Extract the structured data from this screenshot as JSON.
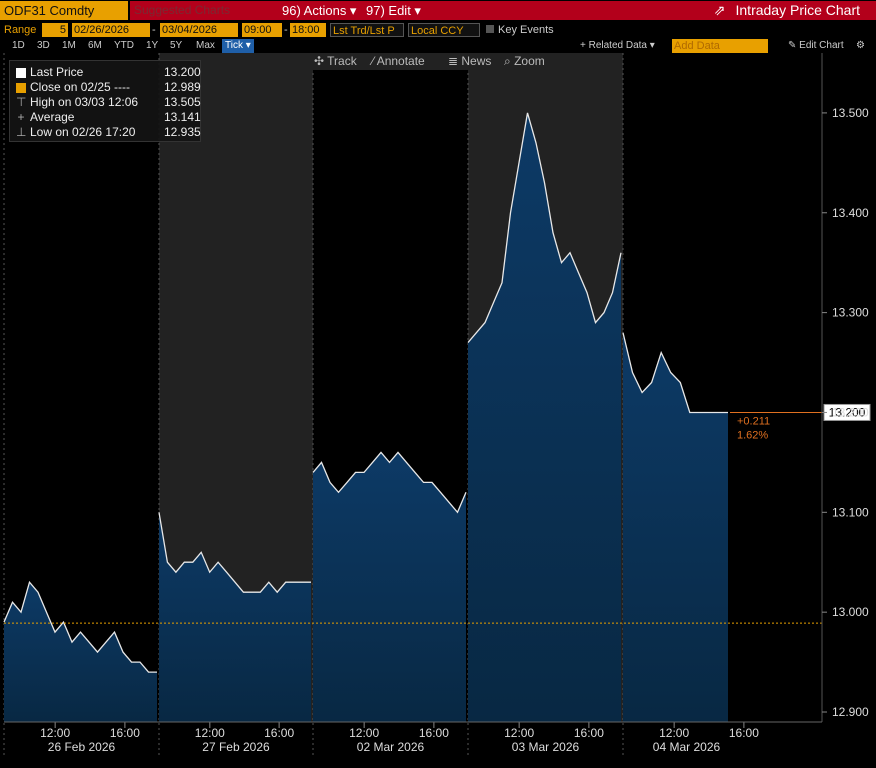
{
  "header": {
    "ticker": "ODF31 Comdty",
    "suggested": "Suggested Charts",
    "actions_label": "96) Actions ▾",
    "edit_label": "97) Edit ▾",
    "window_title": "Intraday Price Chart"
  },
  "controls": {
    "range_label": "Range",
    "range_days": "5",
    "start_date": "02/26/2026",
    "end_date": "03/04/2026",
    "start_time": "09:00",
    "end_time": "18:00",
    "price_type": "Lst Trd/Lst P",
    "currency": "Local CCY",
    "key_events": "Key Events"
  },
  "periods": [
    "1D",
    "3D",
    "1M",
    "6M",
    "YTD",
    "1Y",
    "5Y",
    "Max",
    "Tick ▾"
  ],
  "right_controls": {
    "related": "+ Related Data ▾",
    "add_data": "Add Data",
    "edit_chart": "Edit Chart",
    "gear": "gear-icon"
  },
  "toolbar": {
    "track": "Track",
    "annotate": "Annotate",
    "news": "News",
    "zoom": "Zoom"
  },
  "legend": [
    {
      "label": "Last Price",
      "value": "13.200",
      "color": "#ffffff"
    },
    {
      "label": "Close on 02/25 ----",
      "value": "12.989",
      "color": "#e8a000"
    },
    {
      "label": "High on 03/03 12:06",
      "value": "13.505"
    },
    {
      "label": "Average",
      "value": "13.141"
    },
    {
      "label": "Low on 02/26 17:20",
      "value": "12.935"
    }
  ],
  "chart_data": {
    "type": "area",
    "y_ticks": [
      "12.900",
      "13.000",
      "13.100",
      "13.200",
      "13.300",
      "13.400",
      "13.500"
    ],
    "ylim": [
      12.89,
      13.56
    ],
    "last_price": "13.200",
    "last_value": 13.2,
    "prev_close": 12.989,
    "change_abs": "+0.211",
    "change_pct": "1.62%",
    "days": [
      {
        "label": "26 Feb 2026",
        "ticks": [
          "12:00",
          "16:00"
        ],
        "shaded": false,
        "values": [
          12.99,
          13.01,
          13.0,
          13.03,
          13.02,
          13.0,
          12.98,
          12.99,
          12.97,
          12.98,
          12.97,
          12.96,
          12.97,
          12.98,
          12.96,
          12.95,
          12.95,
          12.94,
          12.94
        ]
      },
      {
        "label": "27 Feb 2026",
        "ticks": [
          "12:00",
          "16:00"
        ],
        "shaded": true,
        "values": [
          13.1,
          13.05,
          13.04,
          13.05,
          13.05,
          13.06,
          13.04,
          13.05,
          13.04,
          13.03,
          13.02,
          13.02,
          13.02,
          13.03,
          13.02,
          13.03,
          13.03,
          13.03,
          13.03
        ]
      },
      {
        "label": "02 Mar 2026",
        "ticks": [
          "12:00",
          "16:00"
        ],
        "shaded": false,
        "values": [
          13.14,
          13.15,
          13.13,
          13.12,
          13.13,
          13.14,
          13.14,
          13.15,
          13.16,
          13.15,
          13.16,
          13.15,
          13.14,
          13.13,
          13.13,
          13.12,
          13.11,
          13.1,
          13.12
        ]
      },
      {
        "label": "03 Mar 2026",
        "ticks": [
          "12:00",
          "16:00"
        ],
        "shaded": true,
        "values": [
          13.27,
          13.28,
          13.29,
          13.31,
          13.33,
          13.4,
          13.45,
          13.5,
          13.47,
          13.43,
          13.38,
          13.35,
          13.36,
          13.34,
          13.32,
          13.29,
          13.3,
          13.32,
          13.36
        ]
      },
      {
        "label": "04 Mar 2026",
        "ticks": [
          "12:00",
          "16:00"
        ],
        "shaded": false,
        "values": [
          13.28,
          13.24,
          13.22,
          13.23,
          13.26,
          13.24,
          13.23,
          13.2,
          13.2,
          13.2,
          13.2,
          13.2
        ]
      }
    ]
  }
}
